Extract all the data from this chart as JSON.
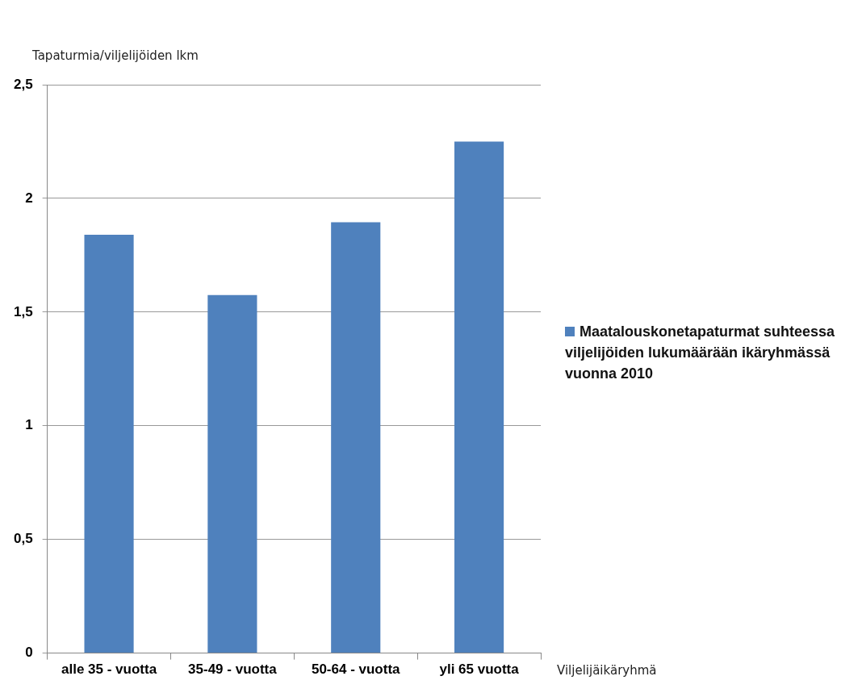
{
  "chart_data": {
    "type": "bar",
    "ylabel": "Tapaturmia/viljelijöiden lkm",
    "xlabel": "Viljelijäikäryhmä",
    "categories": [
      "alle 35 - vuotta",
      "35-49 - vuotta",
      "50-64 - vuotta",
      "yli 65 vuotta"
    ],
    "series": [
      {
        "name": "Maatalouskonetapaturmat suhteessa viljelijöiden lukumäärään ikäryhmässä vuonna 2010",
        "color": "#4f81bd",
        "values": [
          1.84,
          1.575,
          1.895,
          2.25
        ]
      }
    ],
    "ylim": [
      0,
      2.5
    ],
    "yticks": [
      0,
      {
        "value": 0.5,
        "label": "0,5"
      },
      1,
      {
        "value": 1.5,
        "label": "1,5"
      },
      2,
      {
        "value": 2.5,
        "label": "2,5"
      }
    ],
    "grid": "y",
    "legend": "right"
  }
}
